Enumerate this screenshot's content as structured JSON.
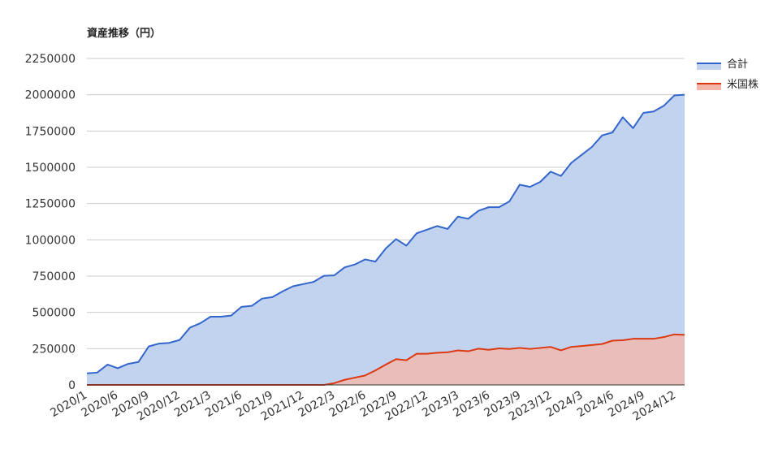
{
  "chart_data": {
    "type": "area",
    "title": "資産推移（円）",
    "xlabel": "",
    "ylabel": "",
    "ylim": [
      0,
      2250000
    ],
    "yticks": [
      0,
      250000,
      500000,
      750000,
      1000000,
      1250000,
      1500000,
      1750000,
      2000000,
      2250000
    ],
    "x_tick_labels": [
      "2020/1",
      "2020/6",
      "2020/9",
      "2020/12",
      "2021/3",
      "2021/6",
      "2021/9",
      "2021/12",
      "2022/3",
      "2022/6",
      "2022/9",
      "2022/12",
      "2023/3",
      "2023/6",
      "2023/9",
      "2023/12",
      "2024/3",
      "2024/6",
      "2024/9",
      "2024/12"
    ],
    "grid": true,
    "legend_position": "top-right",
    "series": [
      {
        "name": "合計",
        "line_color": "#3366cc",
        "fill_color": "#c2d3f0",
        "values": [
          80000,
          85000,
          140000,
          115000,
          145000,
          158000,
          265000,
          285000,
          290000,
          310000,
          395000,
          425000,
          470000,
          470000,
          478000,
          538000,
          545000,
          595000,
          605000,
          645000,
          680000,
          695000,
          710000,
          752000,
          755000,
          810000,
          830000,
          865000,
          850000,
          940000,
          1005000,
          960000,
          1045000,
          1070000,
          1095000,
          1075000,
          1160000,
          1145000,
          1200000,
          1225000,
          1225000,
          1265000,
          1380000,
          1365000,
          1400000,
          1470000,
          1440000,
          1530000,
          1585000,
          1640000,
          1720000,
          1740000,
          1845000,
          1770000,
          1875000,
          1885000,
          1925000,
          1995000,
          2000000
        ]
      },
      {
        "name": "米国株",
        "line_color": "#dc3912",
        "fill_color": "#f4b6a8",
        "values": [
          0,
          0,
          0,
          0,
          0,
          0,
          0,
          0,
          0,
          0,
          0,
          0,
          0,
          0,
          0,
          0,
          0,
          0,
          0,
          0,
          0,
          0,
          0,
          0,
          12000,
          35000,
          50000,
          65000,
          100000,
          140000,
          178000,
          170000,
          215000,
          215000,
          222000,
          225000,
          238000,
          232000,
          250000,
          242000,
          252000,
          248000,
          255000,
          248000,
          255000,
          262000,
          238000,
          262000,
          268000,
          275000,
          282000,
          305000,
          308000,
          318000,
          318000,
          318000,
          330000,
          348000,
          345000
        ]
      }
    ]
  }
}
